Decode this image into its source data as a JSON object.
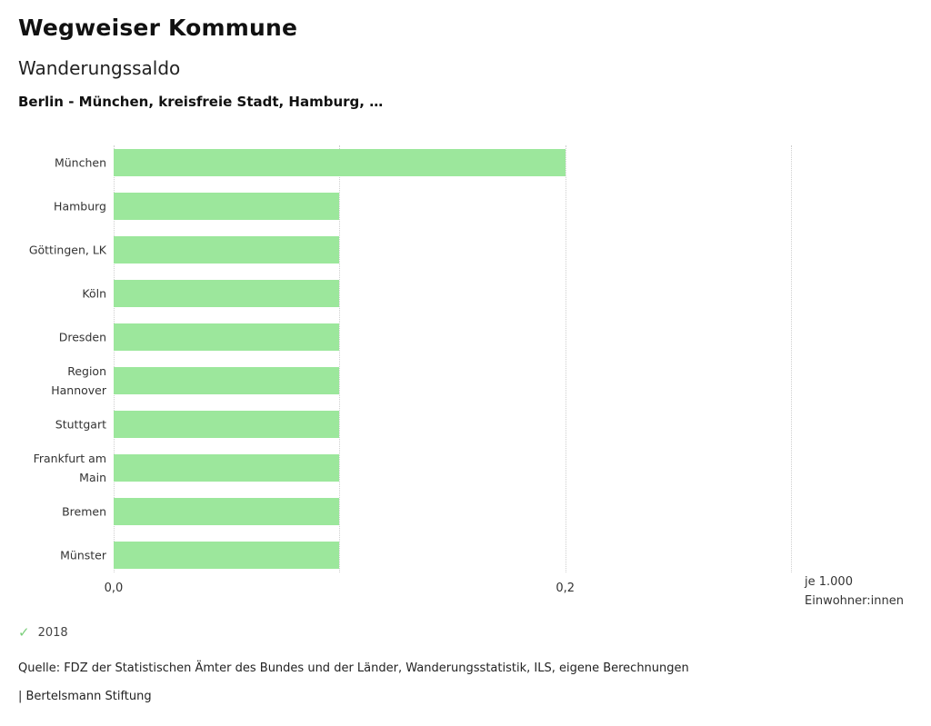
{
  "header": {
    "app_title": "Wegweiser Kommune",
    "chart_title": "Wanderungssaldo",
    "selection_subtitle": "Berlin - München, kreisfreie Stadt, Hamburg, …"
  },
  "chart_data": {
    "type": "bar",
    "orientation": "horizontal",
    "title": "Wanderungssaldo",
    "subtitle": "Berlin - München, kreisfreie Stadt, Hamburg, …",
    "categories": [
      "München",
      "Hamburg",
      "Göttingen, LK",
      "Köln",
      "Dresden",
      "Region Hannover",
      "Stuttgart",
      "Frankfurt am Main",
      "Bremen",
      "Münster"
    ],
    "values": [
      0.2,
      0.1,
      0.1,
      0.1,
      0.1,
      0.1,
      0.1,
      0.1,
      0.1,
      0.1
    ],
    "series_name": "2018",
    "xlabel": "je 1.000 Einwohner:innen",
    "xlim": [
      0,
      0.3
    ],
    "xticks": [
      {
        "value": 0.0,
        "label": "0,0"
      },
      {
        "value": 0.2,
        "label": "0,2"
      }
    ],
    "gridlines": [
      0.0,
      0.1,
      0.2,
      0.3
    ],
    "grid": "dotted-vertical",
    "legend_position": "bottom-left"
  },
  "axis": {
    "unit_line1": "je 1.000",
    "unit_line2": "Einwohner:innen"
  },
  "legend": {
    "check_icon": "✓",
    "year": "2018"
  },
  "footer": {
    "source": "Quelle: FDZ der Statistischen Ämter des Bundes und der Länder, Wanderungsstatistik, ILS, eigene Berechnungen",
    "brand": "| Bertelsmann Stiftung"
  },
  "colors": {
    "bar": "#9ce79c",
    "check": "#7ccf7c",
    "grid": "#cfcfcf"
  }
}
